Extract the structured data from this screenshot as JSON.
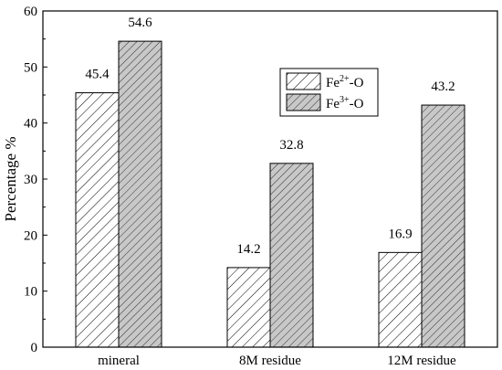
{
  "chart_data": {
    "type": "bar",
    "title": "",
    "xlabel": "",
    "ylabel": "Percentage  %",
    "ylim": [
      0,
      60
    ],
    "yticks": [
      0,
      10,
      20,
      30,
      40,
      50,
      60
    ],
    "categories": [
      "mineral",
      "8M residue",
      "12M residue"
    ],
    "series": [
      {
        "name_base": "Fe",
        "name_sup": "2+",
        "name_suffix": "-O",
        "values": [
          45.4,
          14.2,
          16.9
        ],
        "value_labels": [
          "45.4",
          "14.2",
          "16.9"
        ],
        "pattern": "hatch-light"
      },
      {
        "name_base": "Fe",
        "name_sup": "3+",
        "name_suffix": "-O",
        "values": [
          54.6,
          32.8,
          43.2
        ],
        "value_labels": [
          "54.6",
          "32.8",
          "43.2"
        ],
        "pattern": "hatch-dark"
      }
    ],
    "legend_position": "top-right",
    "grid": false,
    "colors": {
      "hatch_light_bg": "#ffffff",
      "hatch_dark_bg": "#c8c8c8",
      "stroke": "#000000"
    }
  }
}
